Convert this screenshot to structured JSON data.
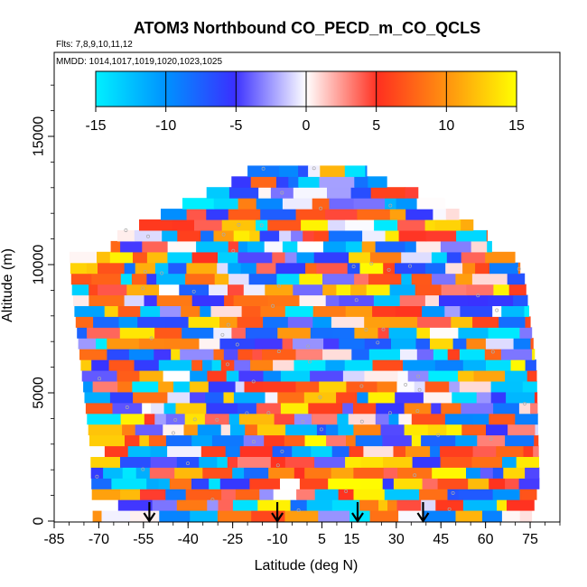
{
  "chart_data": {
    "type": "heatmap",
    "title": "ATOM3 Northbound CO_PECD_m_CO_QCLS",
    "subtitle_flights": "Flts: 7,8,9,10,11,12",
    "subtitle_dates": "MMDD: 1014,1017,1019,1020,1023,1025",
    "xlabel": "Latitude (deg N)",
    "ylabel": "Altitude (m)",
    "xlim": [
      -85,
      85
    ],
    "ylim": [
      0,
      17500
    ],
    "x_ticks": [
      "-85",
      "-70",
      "-55",
      "-40",
      "-25",
      "-10",
      "5",
      "15",
      "30",
      "45",
      "60",
      "75"
    ],
    "x_tick_values": [
      -85,
      -70,
      -55,
      -40,
      -25,
      -10,
      5,
      15,
      30,
      45,
      60,
      75
    ],
    "y_ticks": [
      "0",
      "5000",
      "10000",
      "15000"
    ],
    "y_tick_values": [
      0,
      5000,
      10000,
      15000
    ],
    "colorbar": {
      "range": [
        -15,
        15
      ],
      "tick_labels": [
        "-15",
        "-10",
        "-5",
        "0",
        "5",
        "10",
        "15"
      ],
      "tick_values": [
        -15,
        -10,
        -5,
        0,
        5,
        10,
        15
      ],
      "colors": [
        "#00f0ff",
        "#3a30ff",
        "#ffffff",
        "#ff3020",
        "#ffff00"
      ]
    },
    "profile_arrows_lat": [
      -53,
      -10,
      17,
      39
    ],
    "envelope": {
      "lat_south": [
        -72,
        -73,
        -76,
        -79,
        -80
      ],
      "alt_south": [
        0,
        3000,
        6000,
        9000,
        10500
      ],
      "lat_north": [
        75,
        78,
        77,
        73,
        69
      ],
      "alt_north": [
        0,
        1500,
        6000,
        9500,
        10500
      ],
      "cap_alt": [
        11000,
        12500,
        13500
      ],
      "cap_lat_south": [
        -66,
        -40,
        -20
      ],
      "cap_lat_north": [
        62,
        45,
        20
      ]
    }
  }
}
